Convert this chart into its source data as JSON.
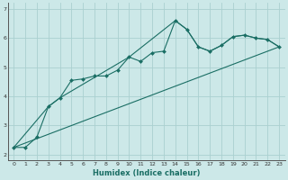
{
  "xlabel": "Humidex (Indice chaleur)",
  "background_color": "#cce8e8",
  "grid_color": "#aad0d0",
  "line_color": "#1a6e64",
  "xlim": [
    -0.5,
    23.5
  ],
  "ylim": [
    1.8,
    7.2
  ],
  "yticks": [
    2,
    3,
    4,
    5,
    6,
    7
  ],
  "xticks": [
    0,
    1,
    2,
    3,
    4,
    5,
    6,
    7,
    8,
    9,
    10,
    11,
    12,
    13,
    14,
    15,
    16,
    17,
    18,
    19,
    20,
    21,
    22,
    23
  ],
  "series": [
    {
      "x": [
        0,
        1,
        2,
        3,
        4,
        5,
        6,
        7,
        8,
        9,
        10,
        11,
        12,
        13,
        14,
        15,
        16,
        17,
        18,
        19,
        20,
        21,
        22,
        23
      ],
      "y": [
        2.25,
        2.25,
        2.6,
        3.65,
        3.95,
        4.55,
        4.6,
        4.7,
        4.7,
        4.9,
        5.35,
        5.2,
        5.5,
        5.55,
        6.6,
        6.3,
        5.7,
        5.55,
        5.75,
        6.05,
        6.1,
        6.0,
        5.95,
        5.7
      ],
      "marker": "D",
      "markersize": 2.0
    },
    {
      "x": [
        0,
        3,
        4,
        10,
        14,
        15,
        16,
        17,
        18,
        19,
        20,
        21,
        22,
        23
      ],
      "y": [
        2.25,
        3.65,
        3.95,
        5.35,
        6.6,
        6.3,
        5.7,
        5.55,
        5.75,
        6.05,
        6.1,
        6.0,
        5.95,
        5.7
      ],
      "marker": null,
      "markersize": 0
    },
    {
      "x": [
        0,
        23
      ],
      "y": [
        2.25,
        5.7
      ],
      "marker": null,
      "markersize": 0
    }
  ]
}
